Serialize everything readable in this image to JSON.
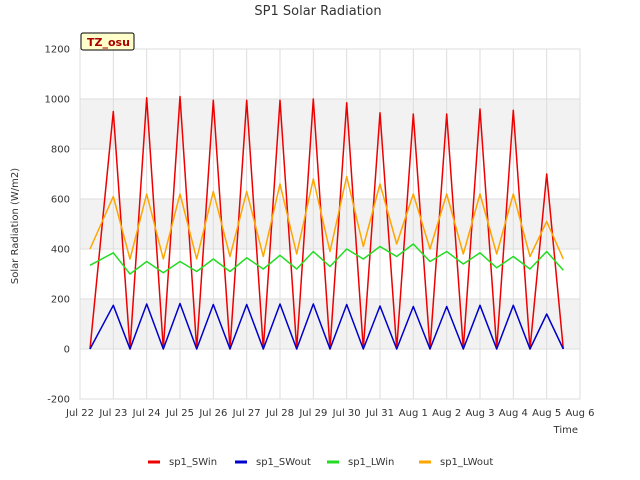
{
  "chart_data": {
    "type": "line",
    "title": "SP1 Solar Radiation",
    "xlabel": "Time",
    "ylabel": "Solar Radiation (W/m2)",
    "ylim": [
      -200,
      1200
    ],
    "xlim": [
      0,
      15
    ],
    "yticks": [
      -200,
      0,
      200,
      400,
      600,
      800,
      1000,
      1200
    ],
    "xticks": [
      {
        "value": 0,
        "label": "Jul 22"
      },
      {
        "value": 1,
        "label": "Jul 23"
      },
      {
        "value": 2,
        "label": "Jul 24"
      },
      {
        "value": 3,
        "label": "Jul 25"
      },
      {
        "value": 4,
        "label": "Jul 26"
      },
      {
        "value": 5,
        "label": "Jul 27"
      },
      {
        "value": 6,
        "label": "Jul 28"
      },
      {
        "value": 7,
        "label": "Jul 29"
      },
      {
        "value": 8,
        "label": "Jul 30"
      },
      {
        "value": 9,
        "label": "Jul 31"
      },
      {
        "value": 10,
        "label": "Aug 1"
      },
      {
        "value": 11,
        "label": "Aug 2"
      },
      {
        "value": 12,
        "label": "Aug 3"
      },
      {
        "value": 13,
        "label": "Aug 4"
      },
      {
        "value": 14,
        "label": "Aug 5"
      },
      {
        "value": 15,
        "label": "Aug 6"
      }
    ],
    "grid": true,
    "background_bands": true,
    "legend_position": "bottom",
    "annotation": "TZ_osu",
    "series": [
      {
        "name": "sp1_SWin",
        "color": "#ee0000",
        "x": [
          0.3,
          1.0,
          1.5,
          2.0,
          2.5,
          3.0,
          3.5,
          4.0,
          4.5,
          5.0,
          5.5,
          6.0,
          6.5,
          7.0,
          7.5,
          8.0,
          8.5,
          9.0,
          9.5,
          10.0,
          10.5,
          11.0,
          11.5,
          12.0,
          12.5,
          13.0,
          13.5,
          14.0,
          14.5
        ],
        "values": [
          0,
          950,
          0,
          1005,
          0,
          1010,
          0,
          995,
          0,
          995,
          0,
          995,
          0,
          1000,
          0,
          985,
          0,
          945,
          0,
          940,
          0,
          940,
          0,
          960,
          0,
          955,
          0,
          700,
          0
        ]
      },
      {
        "name": "sp1_SWout",
        "color": "#0000cc",
        "x": [
          0.3,
          1.0,
          1.5,
          2.0,
          2.5,
          3.0,
          3.5,
          4.0,
          4.5,
          5.0,
          5.5,
          6.0,
          6.5,
          7.0,
          7.5,
          8.0,
          8.5,
          9.0,
          9.5,
          10.0,
          10.5,
          11.0,
          11.5,
          12.0,
          12.5,
          13.0,
          13.5,
          14.0,
          14.5
        ],
        "values": [
          0,
          175,
          0,
          180,
          0,
          182,
          0,
          178,
          0,
          178,
          0,
          180,
          0,
          180,
          0,
          178,
          0,
          172,
          0,
          170,
          0,
          170,
          0,
          175,
          0,
          175,
          0,
          140,
          0
        ]
      },
      {
        "name": "sp1_LWin",
        "color": "#22dd22",
        "x": [
          0.3,
          1.0,
          1.5,
          2.0,
          2.5,
          3.0,
          3.5,
          4.0,
          4.5,
          5.0,
          5.5,
          6.0,
          6.5,
          7.0,
          7.5,
          8.0,
          8.5,
          9.0,
          9.5,
          10.0,
          10.5,
          11.0,
          11.5,
          12.0,
          12.5,
          13.0,
          13.5,
          14.0,
          14.5
        ],
        "values": [
          335,
          385,
          300,
          350,
          305,
          350,
          310,
          360,
          310,
          365,
          320,
          375,
          320,
          390,
          330,
          400,
          360,
          410,
          370,
          420,
          350,
          390,
          340,
          385,
          325,
          370,
          320,
          390,
          315
        ]
      },
      {
        "name": "sp1_LWout",
        "color": "#ffa500",
        "x": [
          0.3,
          1.0,
          1.5,
          2.0,
          2.5,
          3.0,
          3.5,
          4.0,
          4.5,
          5.0,
          5.5,
          6.0,
          6.5,
          7.0,
          7.5,
          8.0,
          8.5,
          9.0,
          9.5,
          10.0,
          10.5,
          11.0,
          11.5,
          12.0,
          12.5,
          13.0,
          13.5,
          14.0,
          14.5
        ],
        "values": [
          400,
          610,
          360,
          620,
          360,
          620,
          360,
          630,
          370,
          630,
          370,
          660,
          380,
          680,
          390,
          690,
          410,
          660,
          420,
          620,
          400,
          620,
          380,
          620,
          380,
          620,
          370,
          510,
          360
        ]
      }
    ]
  }
}
